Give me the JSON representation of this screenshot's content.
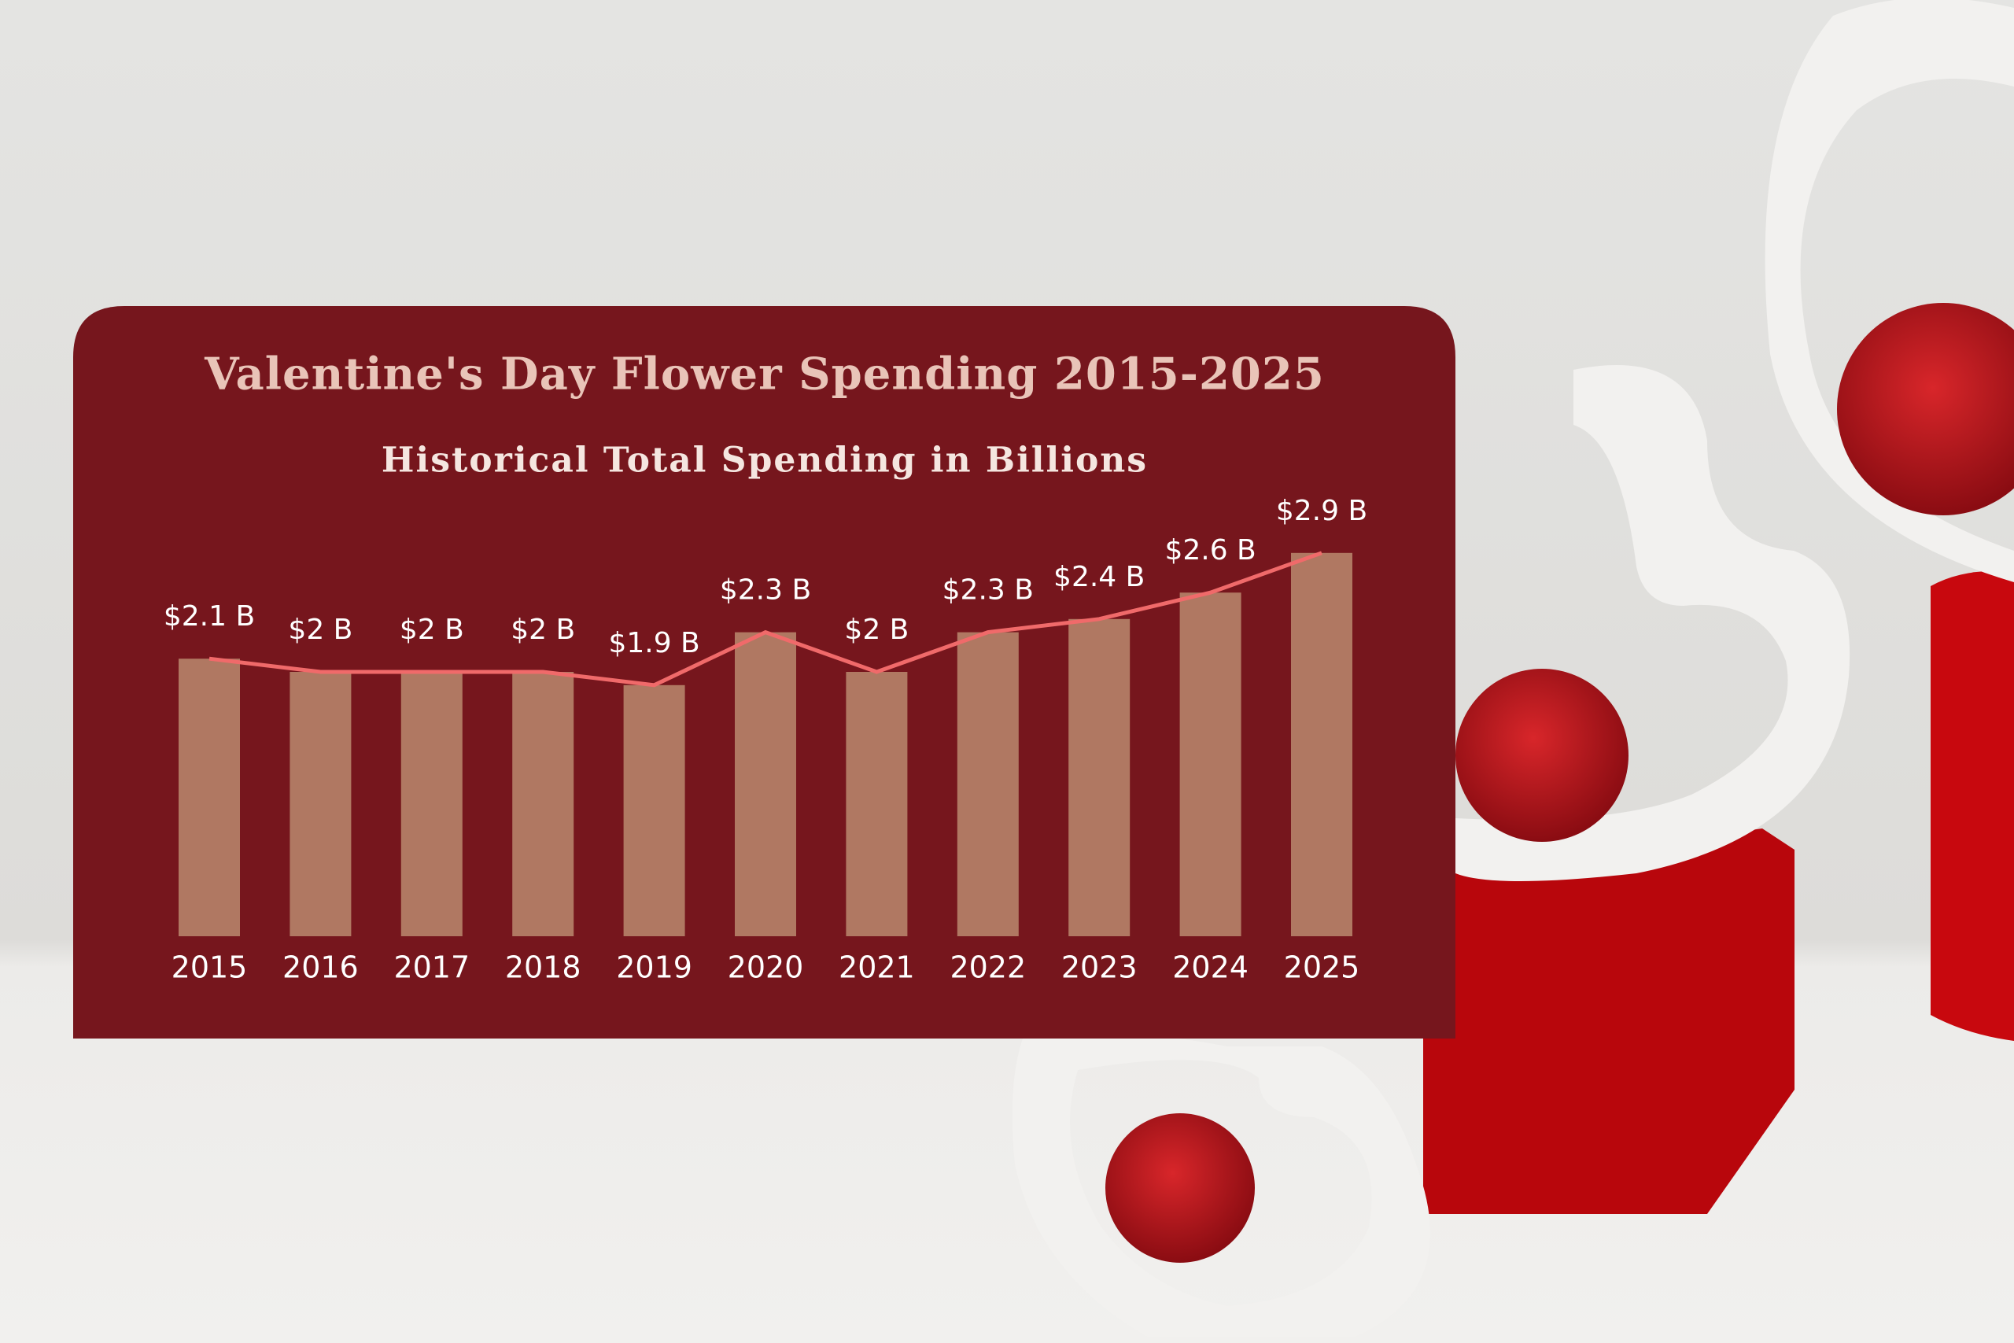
{
  "chart_data": {
    "type": "bar",
    "title": "Valentine's Day Flower Spending 2015-2025",
    "subtitle": "Historical Total Spending in Billions",
    "categories": [
      "2015",
      "2016",
      "2017",
      "2018",
      "2019",
      "2020",
      "2021",
      "2022",
      "2023",
      "2024",
      "2025"
    ],
    "values": [
      2.1,
      2.0,
      2.0,
      2.0,
      1.9,
      2.3,
      2.0,
      2.3,
      2.4,
      2.6,
      2.9
    ],
    "value_labels": [
      "$2.1 B",
      "$2 B",
      "$2 B",
      "$2 B",
      "$1.9 B",
      "$2.3 B",
      "$2 B",
      "$2.3 B",
      "$2.4 B",
      "$2.6 B",
      "$2.9 B"
    ],
    "color": "#b07862",
    "line_color": "#f06a6a"
  }
}
